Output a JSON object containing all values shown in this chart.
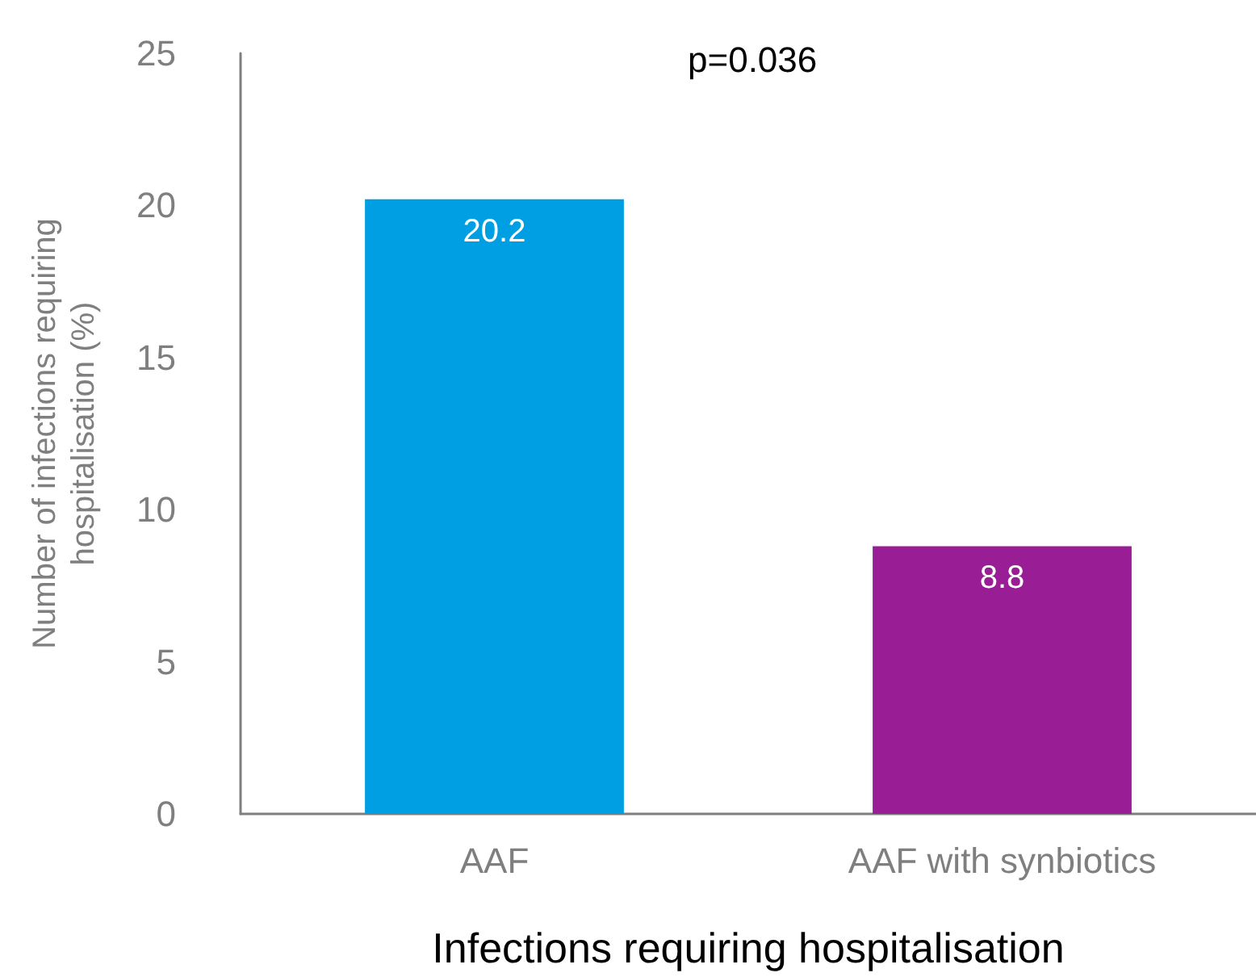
{
  "chart_data": {
    "type": "bar",
    "categories": [
      "AAF",
      "AAF with synbiotics"
    ],
    "values": [
      20.2,
      8.8
    ],
    "colors": [
      "#009fe3",
      "#991e96"
    ],
    "ylabel": "Number of infections requiring\nhospitalisation (%)",
    "xlabel": "Infections requiring hospitalisation",
    "annotations": [
      "p=0.036"
    ],
    "ylim": [
      0,
      25
    ],
    "yticks": [
      0,
      5,
      10,
      15,
      20,
      25
    ],
    "grid": false,
    "data_labels": true
  }
}
